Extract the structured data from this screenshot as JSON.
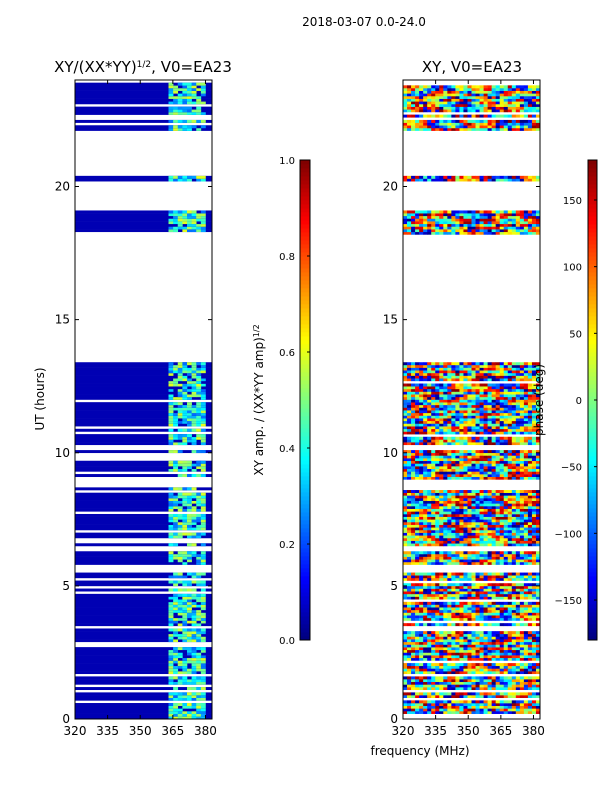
{
  "suptitle": "2018-03-07 0.0-24.0",
  "xlabel": "frequency (MHz)",
  "colors": {
    "masked": "#ffffff",
    "low": "#00007f",
    "frame": "#000000"
  },
  "chart_data": [
    {
      "type": "heatmap",
      "title_base": "XY/(XX*YY)",
      "title_exp": "1/2",
      "title_suffix": ", V0=EA23",
      "xlabel": "frequency (MHz)",
      "ylabel": "UT (hours)",
      "xlim": [
        320,
        383
      ],
      "ylim": [
        0,
        24
      ],
      "xticks": [
        320,
        335,
        350,
        365,
        380
      ],
      "yticks": [
        0,
        5,
        10,
        15,
        20
      ],
      "colormap": "jet",
      "zlim": [
        0.0,
        1.0
      ],
      "colorbar_label_base": "XY amp. / (XX*YY amp)",
      "colorbar_label_exp": "1/2",
      "colorbar_ticks": [
        0.0,
        0.2,
        0.4,
        0.6,
        0.8,
        1.0
      ],
      "colorbar_tick_labels": [
        "0.0",
        "0.2",
        "0.4",
        "0.6",
        "0.8",
        "1.0"
      ],
      "data_time_ranges": [
        [
          0.0,
          1.55
        ],
        [
          1.7,
          3.4
        ],
        [
          3.55,
          5.5
        ],
        [
          5.8,
          6.3
        ],
        [
          6.5,
          8.8
        ],
        [
          9.0,
          10.1
        ],
        [
          10.3,
          13.4
        ],
        [
          18.2,
          19.1
        ],
        [
          20.2,
          20.35
        ],
        [
          22.1,
          23.95
        ]
      ],
      "high_band": [
        363,
        380
      ],
      "description_values": {
        "background": 0.0,
        "band_min": 0.3,
        "band_max": 0.8
      }
    },
    {
      "type": "heatmap",
      "title_base": "XY, V0=EA23",
      "xlabel": "frequency (MHz)",
      "ylabel": "",
      "xlim": [
        320,
        383
      ],
      "ylim": [
        0,
        24
      ],
      "xticks": [
        320,
        335,
        350,
        365,
        380
      ],
      "yticks": [
        0,
        5,
        10,
        15,
        20
      ],
      "colormap": "jet",
      "zlim": [
        -180,
        180
      ],
      "colorbar_label": "phase (deg)",
      "colorbar_ticks": [
        -150,
        -100,
        -50,
        0,
        50,
        100,
        150
      ],
      "colorbar_tick_labels": [
        "−150",
        "−100",
        "−50",
        "0",
        "50",
        "100",
        "150"
      ],
      "data_time_ranges": [
        [
          0.0,
          1.55
        ],
        [
          1.7,
          3.4
        ],
        [
          3.55,
          5.5
        ],
        [
          5.8,
          6.3
        ],
        [
          6.5,
          8.8
        ],
        [
          9.0,
          10.1
        ],
        [
          10.3,
          13.4
        ],
        [
          18.2,
          19.1
        ],
        [
          20.2,
          20.35
        ],
        [
          22.1,
          23.95
        ]
      ]
    }
  ]
}
